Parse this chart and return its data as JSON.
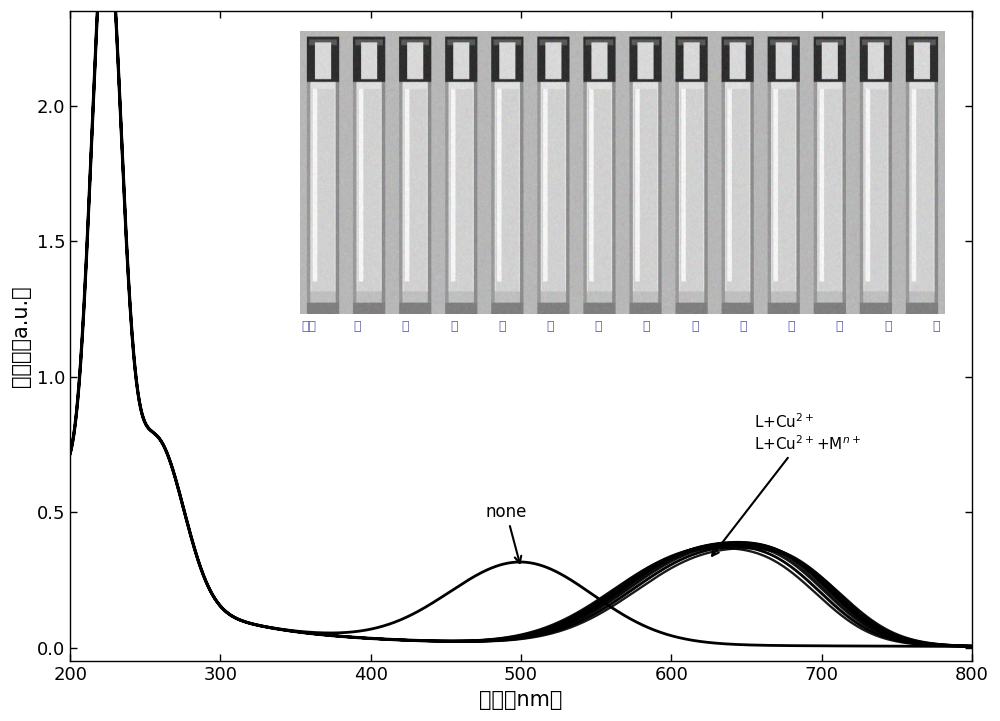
{
  "xlabel": "波长（nm）",
  "ylabel": "吸光度（a.u.）",
  "xlim": [
    200,
    800
  ],
  "ylim": [
    -0.05,
    2.35
  ],
  "xticks": [
    200,
    300,
    400,
    500,
    600,
    700,
    800
  ],
  "yticks": [
    0.0,
    0.5,
    1.0,
    1.5,
    2.0
  ],
  "background_color": "#ffffff",
  "xlabel_fontsize": 15,
  "ylabel_fontsize": 15,
  "tick_fontsize": 13,
  "inset_label_chars": [
    "粉红",
    "蓝",
    "蓝",
    "蓝",
    "蓝",
    "蓝",
    "蓝",
    "蓝",
    "蓝",
    "蓝",
    "蓝",
    "蓝",
    "蓝",
    "蓝"
  ],
  "inset_label_color": "#5555aa"
}
